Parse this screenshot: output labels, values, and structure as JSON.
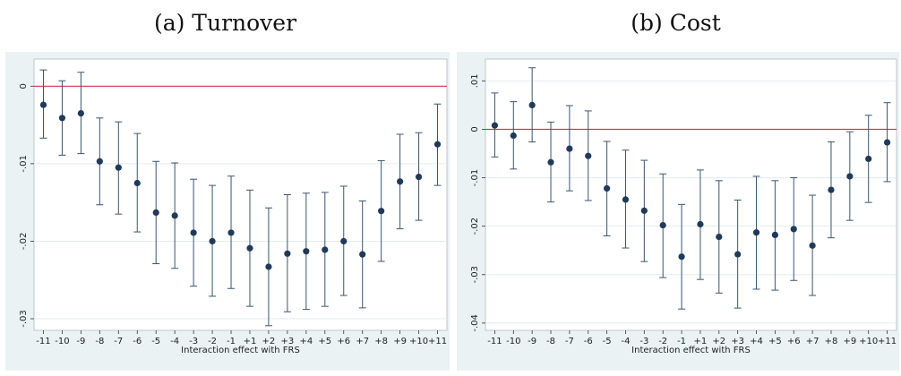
{
  "chart_data": [
    {
      "type": "scatter",
      "panel_title": "(a) Turnover",
      "xlabel": "Interaction effect with FRS",
      "ylabel": "",
      "categories": [
        "-11",
        "-10",
        "-9",
        "-8",
        "-7",
        "-6",
        "-5",
        "-4",
        "-3",
        "-2",
        "-1",
        "+1",
        "+2",
        "+3",
        "+4",
        "+5",
        "+6",
        "+7",
        "+8",
        "+9",
        "+10",
        "+11"
      ],
      "series": [
        {
          "values": [
            -0.0024,
            -0.0041,
            -0.0035,
            -0.0097,
            -0.0105,
            -0.0125,
            -0.0163,
            -0.0167,
            -0.0189,
            -0.02,
            -0.0189,
            -0.0209,
            -0.0233,
            -0.0216,
            -0.0213,
            -0.0211,
            -0.02,
            -0.0217,
            -0.0161,
            -0.0123,
            -0.0117,
            -0.0075
          ],
          "ci_low": [
            -0.0067,
            -0.0089,
            -0.0087,
            -0.0153,
            -0.0165,
            -0.0188,
            -0.0229,
            -0.0235,
            -0.0258,
            -0.0271,
            -0.0261,
            -0.0284,
            -0.0309,
            -0.0291,
            -0.0288,
            -0.0284,
            -0.027,
            -0.0286,
            -0.0226,
            -0.0184,
            -0.0173,
            -0.0128
          ],
          "ci_high": [
            0.0021,
            0.0007,
            0.0018,
            -0.0041,
            -0.0046,
            -0.0061,
            -0.0097,
            -0.0099,
            -0.012,
            -0.0128,
            -0.0116,
            -0.0134,
            -0.0157,
            -0.014,
            -0.0138,
            -0.0137,
            -0.0129,
            -0.0148,
            -0.0096,
            -0.0062,
            -0.006,
            -0.0023
          ]
        }
      ],
      "yticks": [
        0,
        -0.01,
        -0.02,
        -0.03
      ],
      "ytick_labels": [
        "0",
        "-.01",
        "-.02",
        "-.03"
      ],
      "ylim": [
        -0.0315,
        0.0035
      ],
      "reference_line": 0,
      "colors": {
        "point": "#1f3a5a",
        "errorbar": "#3a5570",
        "refline": "#d2344f",
        "plot_bg": "#ffffff",
        "outer_bg": "#eaf2f3",
        "grid": "#e3ebef"
      }
    },
    {
      "type": "scatter",
      "panel_title": "(b) Cost",
      "xlabel": "Interaction effect with FRS",
      "ylabel": "",
      "categories": [
        "-11",
        "-10",
        "-9",
        "-8",
        "-7",
        "-6",
        "-5",
        "-4",
        "-3",
        "-2",
        "-1",
        "+1",
        "+2",
        "+3",
        "+4",
        "+5",
        "+6",
        "+7",
        "+8",
        "+9",
        "+10",
        "+11"
      ],
      "series": [
        {
          "values": [
            0.0008,
            -0.0013,
            0.005,
            -0.0068,
            -0.004,
            -0.0055,
            -0.0122,
            -0.0145,
            -0.0168,
            -0.0198,
            -0.0263,
            -0.0196,
            -0.0222,
            -0.0258,
            -0.0213,
            -0.0218,
            -0.0206,
            -0.024,
            -0.0125,
            -0.0097,
            -0.0061,
            -0.0027
          ],
          "ci_low": [
            -0.0057,
            -0.0082,
            -0.0026,
            -0.015,
            -0.0127,
            -0.0147,
            -0.022,
            -0.0245,
            -0.0273,
            -0.0306,
            -0.0371,
            -0.031,
            -0.0338,
            -0.0369,
            -0.033,
            -0.0332,
            -0.0312,
            -0.0343,
            -0.0224,
            -0.0188,
            -0.0151,
            -0.0108
          ],
          "ci_high": [
            0.0075,
            0.0057,
            0.0127,
            0.0015,
            0.0049,
            0.0038,
            -0.0025,
            -0.0043,
            -0.0064,
            -0.0092,
            -0.0155,
            -0.0084,
            -0.0106,
            -0.0146,
            -0.0097,
            -0.0106,
            -0.01,
            -0.0136,
            -0.0026,
            -0.0005,
            0.0029,
            0.0055
          ]
        }
      ],
      "yticks": [
        0.01,
        0,
        -0.01,
        -0.02,
        -0.03,
        -0.04
      ],
      "ytick_labels": [
        ".01",
        "0",
        "-.01",
        "-.02",
        "-.03",
        "-.04"
      ],
      "ylim": [
        -0.0415,
        0.0145
      ],
      "reference_line": 0,
      "colors": {
        "point": "#1f3a5a",
        "errorbar": "#3a5570",
        "refline": "#d2344f",
        "plot_bg": "#ffffff",
        "outer_bg": "#eaf2f3",
        "grid": "#e3ebef"
      }
    }
  ]
}
